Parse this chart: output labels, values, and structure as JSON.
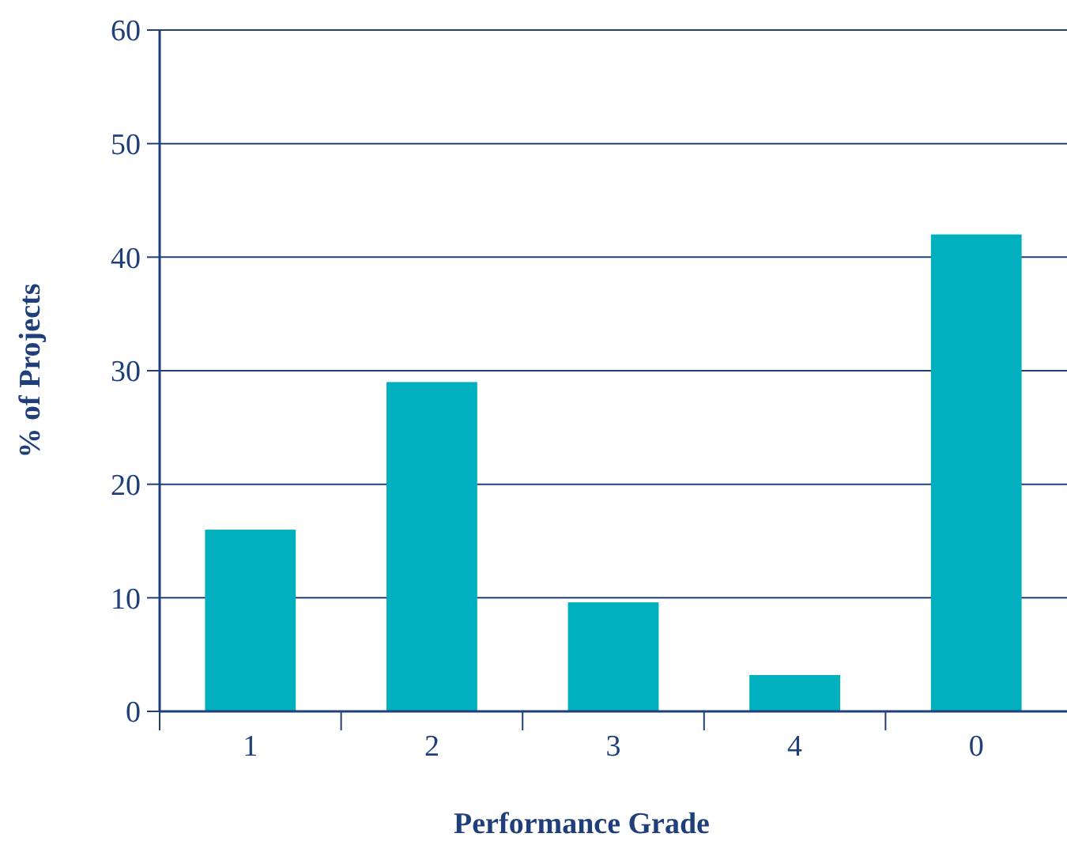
{
  "chart_data": {
    "type": "bar",
    "xlabel": "Performance Grade",
    "ylabel": "% of Projects",
    "categories": [
      "1",
      "2",
      "3",
      "4",
      "0"
    ],
    "values": [
      16,
      29,
      9.6,
      3.2,
      42
    ],
    "color": "#00b0bf",
    "ylim": [
      0,
      60
    ],
    "yticks": [
      0,
      10,
      20,
      30,
      40,
      50,
      60
    ],
    "grid": "y"
  }
}
